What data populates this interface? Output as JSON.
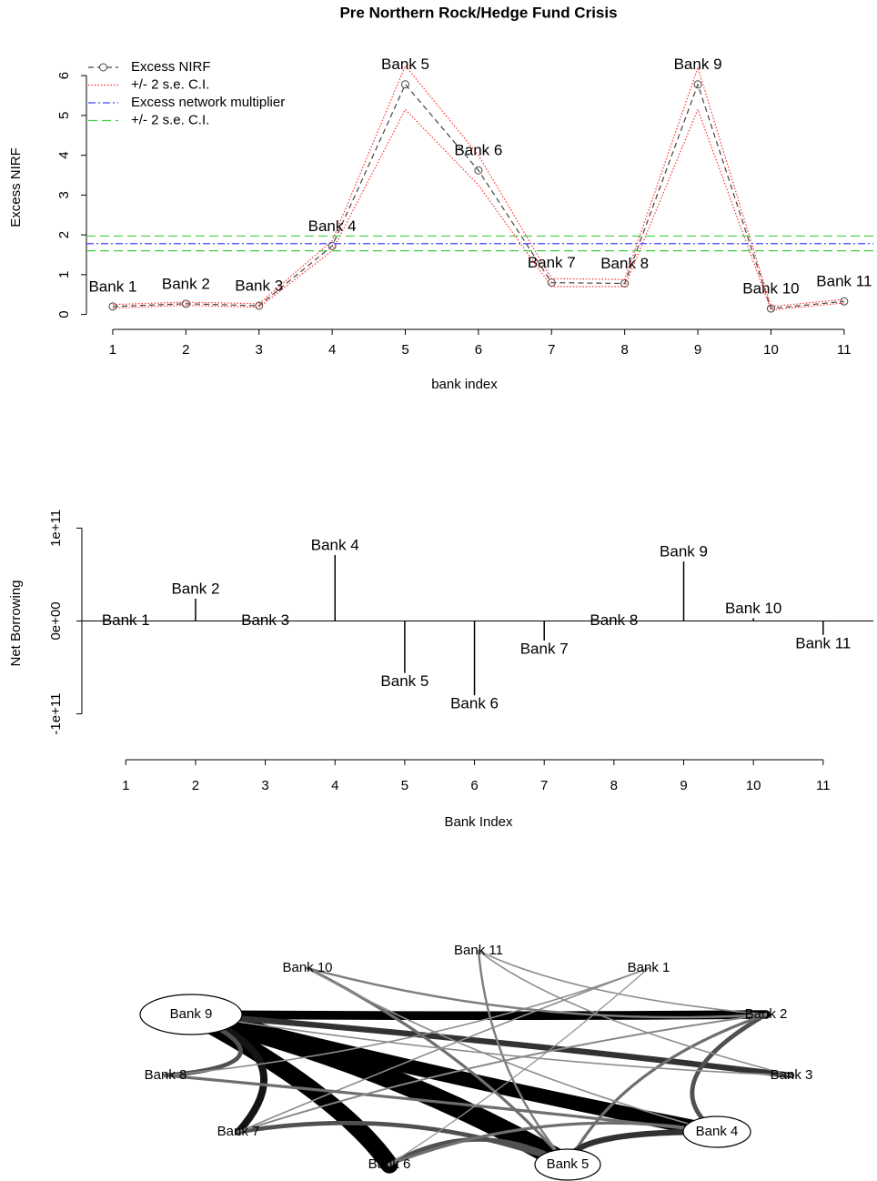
{
  "title": "Pre Northern Rock/Hedge Fund Crisis",
  "chart_data": [
    {
      "type": "line",
      "y_label": "Excess NIRF",
      "x_label": "bank index",
      "x": [
        1,
        2,
        3,
        4,
        5,
        6,
        7,
        8,
        9,
        10,
        11
      ],
      "point_labels": [
        "Bank 1",
        "Bank 2",
        "Bank 3",
        "Bank 4",
        "Bank 5",
        "Bank 6",
        "Bank 7",
        "Bank 8",
        "Bank 9",
        "Bank 10",
        "Bank 11"
      ],
      "xlim": [
        0.64,
        11.4
      ],
      "ylim": [
        -0.1,
        6.3
      ],
      "xticks": [
        1,
        2,
        3,
        4,
        5,
        6,
        7,
        8,
        9,
        10,
        11
      ],
      "yticks": [
        0,
        1,
        2,
        3,
        4,
        5,
        6
      ],
      "legend": "top-left",
      "series": [
        {
          "name": "Excess NIRF",
          "color": "#444444",
          "dash": "6 4",
          "marker": true,
          "values": [
            0.2,
            0.27,
            0.22,
            1.72,
            5.78,
            3.62,
            0.8,
            0.78,
            5.78,
            0.15,
            0.33
          ]
        },
        {
          "name": "+/- 2 s.e. C.I.",
          "color": "#ff3030",
          "dash": "1.5 2",
          "upper": [
            0.25,
            0.31,
            0.27,
            1.85,
            6.25,
            4.0,
            0.9,
            0.88,
            6.2,
            0.2,
            0.38
          ],
          "lower": [
            0.16,
            0.23,
            0.18,
            1.6,
            5.15,
            3.25,
            0.7,
            0.7,
            5.15,
            0.11,
            0.29
          ]
        },
        {
          "name": "Excess network multiplier",
          "color": "#4040ff",
          "dash": "8 3 2 3",
          "hline": [
            1.78
          ]
        },
        {
          "name": "+/- 2 s.e. C.I.",
          "color": "#40d040",
          "dash": "10 5",
          "hline": [
            1.6,
            1.97
          ]
        }
      ]
    },
    {
      "type": "stem",
      "y_label": "Net Borrowing",
      "x_label": "Bank Index",
      "x": [
        1,
        2,
        3,
        4,
        5,
        6,
        7,
        8,
        9,
        10,
        11
      ],
      "point_labels": [
        "Bank 1",
        "Bank 2",
        "Bank 3",
        "Bank 4",
        "Bank 5",
        "Bank 6",
        "Bank 7",
        "Bank 8",
        "Bank 9",
        "Bank 10",
        "Bank 11"
      ],
      "values": [
        0,
        24000000000,
        0,
        71000000000,
        -56000000000,
        -80000000000,
        -21000000000,
        0,
        64000000000,
        3000000000,
        -15000000000
      ],
      "color": "#000000",
      "xlim": [
        0.37,
        11.72
      ],
      "ylim": [
        -120000000000,
        120000000000
      ],
      "xticks": [
        1,
        2,
        3,
        4,
        5,
        6,
        7,
        8,
        9,
        10,
        11
      ],
      "yticks": [
        {
          "value": -100000000000,
          "label": "-1e+11"
        },
        {
          "value": 0,
          "label": "0e+00"
        },
        {
          "value": 100000000000,
          "label": "1e+11"
        }
      ]
    },
    {
      "type": "network",
      "nodes": [
        "Bank 1",
        "Bank 2",
        "Bank 3",
        "Bank 4",
        "Bank 5",
        "Bank 6",
        "Bank 7",
        "Bank 8",
        "Bank 9",
        "Bank 10",
        "Bank 11"
      ],
      "edges": [
        {
          "source": 8,
          "target": 4,
          "weight": 14
        },
        {
          "source": 8,
          "target": 3,
          "weight": 10
        },
        {
          "source": 8,
          "target": 1,
          "weight": 6
        },
        {
          "source": 8,
          "target": 5,
          "weight": 12
        },
        {
          "source": 8,
          "target": 6,
          "weight": 5
        },
        {
          "source": 8,
          "target": 7,
          "weight": 3
        },
        {
          "source": 8,
          "target": 2,
          "weight": 4
        },
        {
          "source": 1,
          "target": 3,
          "weight": 3
        },
        {
          "source": 1,
          "target": 4,
          "weight": 2
        },
        {
          "source": 3,
          "target": 4,
          "weight": 4
        },
        {
          "source": 4,
          "target": 5,
          "weight": 3
        },
        {
          "source": 9,
          "target": 1,
          "weight": 1.5
        },
        {
          "source": 10,
          "target": 2,
          "weight": 1
        },
        {
          "source": 0,
          "target": 7,
          "weight": 1
        },
        {
          "source": 9,
          "target": 4,
          "weight": 2
        },
        {
          "source": 10,
          "target": 4,
          "weight": 1.5
        },
        {
          "source": 0,
          "target": 6,
          "weight": 1
        },
        {
          "source": 2,
          "target": 8,
          "weight": 1
        },
        {
          "source": 6,
          "target": 4,
          "weight": 3
        },
        {
          "source": 7,
          "target": 3,
          "weight": 2
        },
        {
          "source": 5,
          "target": 3,
          "weight": 2
        },
        {
          "source": 9,
          "target": 3,
          "weight": 1
        },
        {
          "source": 10,
          "target": 1,
          "weight": 1
        },
        {
          "source": 0,
          "target": 5,
          "weight": 0.8
        },
        {
          "source": 1,
          "target": 6,
          "weight": 1.2
        }
      ]
    }
  ]
}
